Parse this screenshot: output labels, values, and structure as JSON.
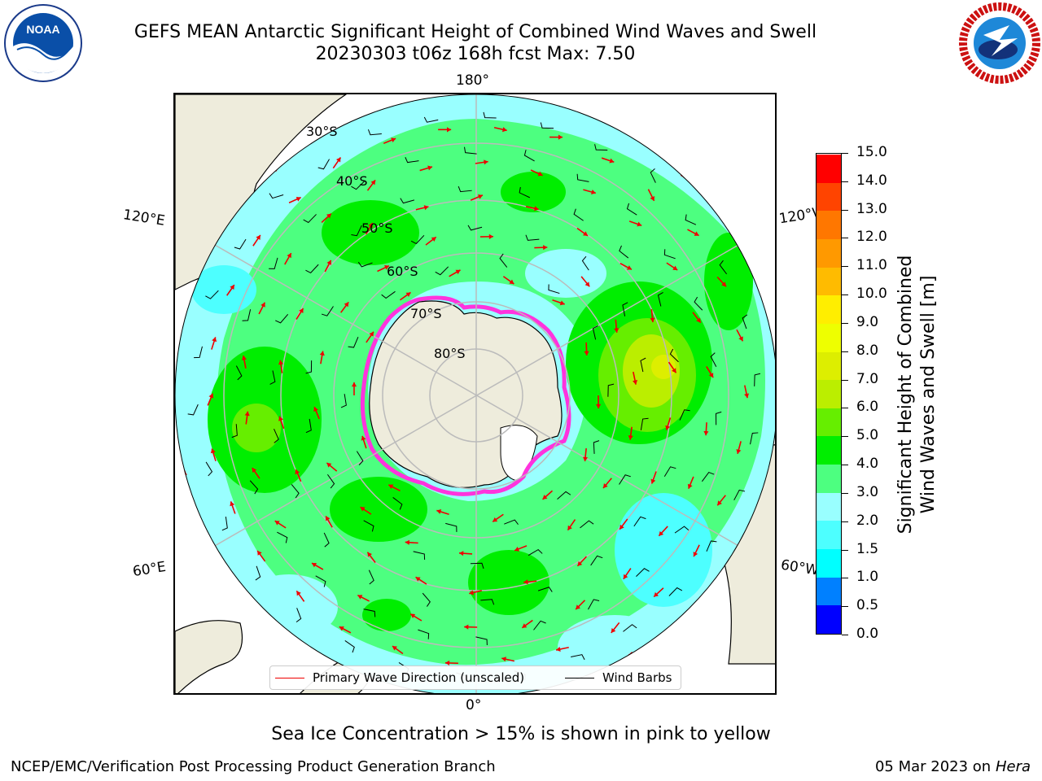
{
  "title_line1": "GEFS MEAN Antarctic Significant Height of Combined Wind Waves and Swell",
  "title_line2": "20230303 t06z 168h fcst   Max: 7.50",
  "logos": {
    "left": "noaa-logo",
    "right": "nws-logo",
    "left_text": "NOAA",
    "right_text": "NATIONAL WEATHER SERVICE"
  },
  "map": {
    "projection": "south-polar-stereographic",
    "longitude_labels": {
      "top": "180°",
      "bottom": "0°",
      "left_upper": "120°E",
      "left_lower": "60°E",
      "right_upper": "120°W",
      "right_lower": "60°W"
    },
    "latitude_labels": [
      "30°S",
      "40°S",
      "50°S",
      "60°S",
      "70°S",
      "80°S"
    ],
    "colors": {
      "land": "#eeecdc",
      "ice_shelf": "#ffffff",
      "sea_ice": "#ff33dd",
      "wave_arrow": "#ee0000",
      "wind_barb": "#000000",
      "graticule": "#bbbbbb"
    }
  },
  "legend": {
    "wave_label": "Primary Wave Direction (unscaled)",
    "barb_label": "Wind Barbs"
  },
  "colorbar": {
    "title_line1": "Significant Height of Combined",
    "title_line2": "Wind Waves and Swell [m]",
    "ticks": [
      "0.0",
      "0.5",
      "1.0",
      "1.5",
      "2.0",
      "3.0",
      "4.0",
      "5.0",
      "6.0",
      "7.0",
      "8.0",
      "9.0",
      "10.0",
      "11.0",
      "12.0",
      "13.0",
      "14.0",
      "15.0"
    ],
    "bins": [
      {
        "from": "0.0",
        "to": "0.5",
        "color": "#0000ff"
      },
      {
        "from": "0.5",
        "to": "1.0",
        "color": "#0080ff"
      },
      {
        "from": "1.0",
        "to": "1.5",
        "color": "#00ffff"
      },
      {
        "from": "1.5",
        "to": "2.0",
        "color": "#4dffff"
      },
      {
        "from": "2.0",
        "to": "3.0",
        "color": "#99ffff"
      },
      {
        "from": "3.0",
        "to": "4.0",
        "color": "#4dff80"
      },
      {
        "from": "4.0",
        "to": "5.0",
        "color": "#00ee00"
      },
      {
        "from": "5.0",
        "to": "6.0",
        "color": "#66ee00"
      },
      {
        "from": "6.0",
        "to": "7.0",
        "color": "#bbee00"
      },
      {
        "from": "7.0",
        "to": "8.0",
        "color": "#ddee00"
      },
      {
        "from": "8.0",
        "to": "9.0",
        "color": "#eeff00"
      },
      {
        "from": "9.0",
        "to": "10.0",
        "color": "#ffee00"
      },
      {
        "from": "10.0",
        "to": "11.0",
        "color": "#ffbb00"
      },
      {
        "from": "11.0",
        "to": "12.0",
        "color": "#ff9900"
      },
      {
        "from": "12.0",
        "to": "13.0",
        "color": "#ff7700"
      },
      {
        "from": "13.0",
        "to": "14.0",
        "color": "#ff4400"
      },
      {
        "from": "14.0",
        "to": "15.0",
        "color": "#ff0000"
      }
    ]
  },
  "subcaption": "Sea Ice Concentration > 15% is shown in pink to yellow",
  "footer": {
    "credit": "NCEP/EMC/Verification Post Processing Product Generation Branch",
    "date": "05 Mar 2023 on",
    "machine": "Hera"
  }
}
